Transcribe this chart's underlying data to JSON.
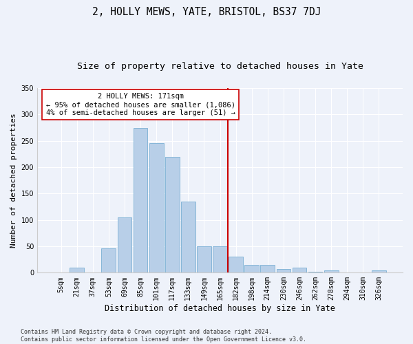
{
  "title1": "2, HOLLY MEWS, YATE, BRISTOL, BS37 7DJ",
  "title2": "Size of property relative to detached houses in Yate",
  "xlabel": "Distribution of detached houses by size in Yate",
  "ylabel": "Number of detached properties",
  "categories": [
    "5sqm",
    "21sqm",
    "37sqm",
    "53sqm",
    "69sqm",
    "85sqm",
    "101sqm",
    "117sqm",
    "133sqm",
    "149sqm",
    "165sqm",
    "182sqm",
    "198sqm",
    "214sqm",
    "230sqm",
    "246sqm",
    "262sqm",
    "278sqm",
    "294sqm",
    "310sqm",
    "326sqm"
  ],
  "bar_values": [
    0,
    10,
    0,
    46,
    105,
    274,
    245,
    220,
    135,
    50,
    50,
    30,
    15,
    15,
    7,
    9,
    2,
    4,
    0,
    0,
    4
  ],
  "bar_color": "#b8cfe8",
  "bar_edge_color": "#7aafd4",
  "vline_pos": 10.5,
  "vline_color": "#cc0000",
  "annotation_text": "2 HOLLY MEWS: 171sqm\n← 95% of detached houses are smaller (1,086)\n4% of semi-detached houses are larger (51) →",
  "annotation_box_color": "#ffffff",
  "annotation_box_edge": "#cc0000",
  "ylim": [
    0,
    350
  ],
  "yticks": [
    0,
    50,
    100,
    150,
    200,
    250,
    300,
    350
  ],
  "background_color": "#eef2fa",
  "grid_color": "#ffffff",
  "footer": "Contains HM Land Registry data © Crown copyright and database right 2024.\nContains public sector information licensed under the Open Government Licence v3.0.",
  "title1_fontsize": 10.5,
  "title2_fontsize": 9.5,
  "xlabel_fontsize": 8.5,
  "ylabel_fontsize": 8,
  "tick_fontsize": 7,
  "annotation_fontsize": 7.5,
  "footer_fontsize": 6
}
